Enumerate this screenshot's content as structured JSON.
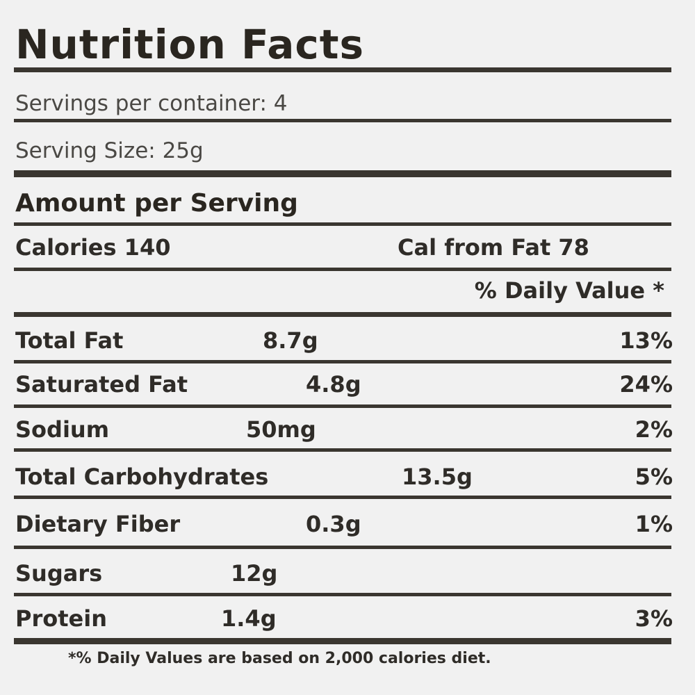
{
  "title": "Nutrition Facts",
  "servings_per_container": "Servings per container: 4",
  "serving_size": "Serving Size: 25g",
  "amount_per_serving": "Amount per Serving",
  "calories": "Calories 140",
  "cal_from_fat": "Cal from Fat 78",
  "daily_value_header": "% Daily Value *",
  "nutrients": [
    {
      "name": "Total Fat",
      "amount": "8.7g",
      "dv": "13%"
    },
    {
      "name": "Saturated Fat",
      "amount": "4.8g",
      "dv": "24%"
    },
    {
      "name": "Sodium",
      "amount": "50mg",
      "dv": "2%"
    },
    {
      "name": "Total Carbohydrates",
      "amount": "13.5g",
      "dv": "5%"
    },
    {
      "name": "Dietary Fiber",
      "amount": "0.3g",
      "dv": "1%"
    },
    {
      "name": "Sugars",
      "amount": "12g",
      "dv": ""
    },
    {
      "name": "Protein",
      "amount": "1.4g",
      "dv": "3%"
    }
  ],
  "footnote": "*% Daily Values are based on 2,000 calories diet."
}
